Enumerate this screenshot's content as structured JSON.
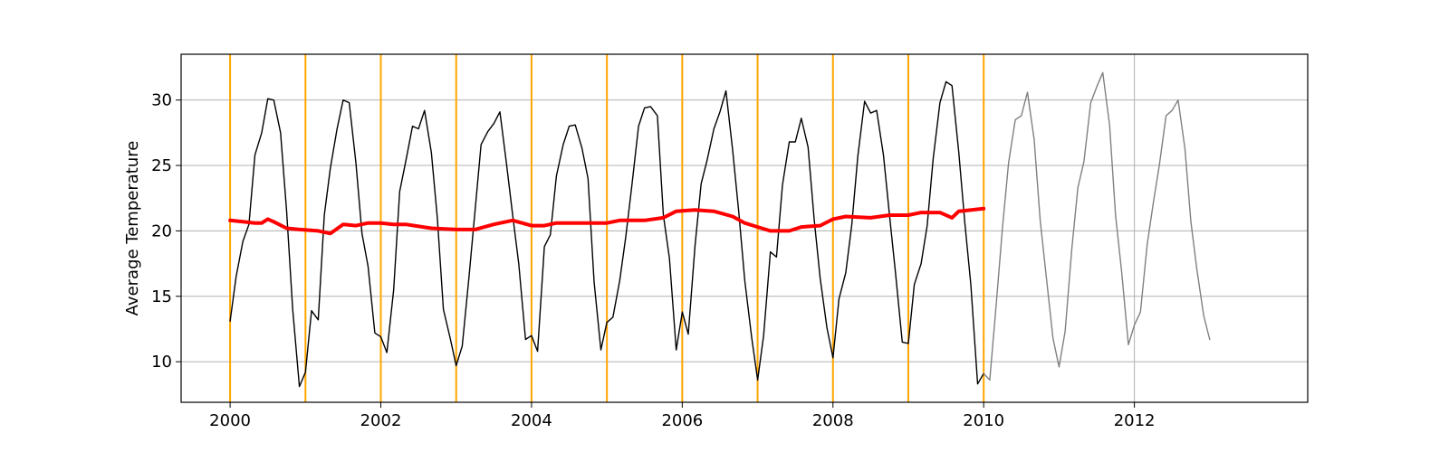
{
  "chart_data": {
    "type": "line",
    "title": "",
    "xlabel": "",
    "ylabel": "Average Temperature",
    "xlim": [
      1999.35,
      2014.3
    ],
    "ylim": [
      6.9,
      33.5
    ],
    "grid": true,
    "x_ticks": [
      2000,
      2002,
      2004,
      2006,
      2008,
      2010,
      2012
    ],
    "y_ticks": [
      10,
      15,
      20,
      25,
      30
    ],
    "x_tick_labels": [
      "2000",
      "2002",
      "2004",
      "2006",
      "2008",
      "2010",
      "2012"
    ],
    "y_tick_labels": [
      "10",
      "15",
      "20",
      "25",
      "30"
    ],
    "vertical_lines": {
      "color": "#ffa500",
      "x": [
        2000,
        2001,
        2002,
        2003,
        2004,
        2005,
        2006,
        2007,
        2008,
        2009,
        2010
      ]
    },
    "series": [
      {
        "color": "#000000",
        "points": [
          [
            2000.0,
            13.1
          ],
          [
            2000.08,
            16.5
          ],
          [
            2000.17,
            19.2
          ],
          [
            2000.25,
            20.5
          ],
          [
            2000.33,
            25.8
          ],
          [
            2000.42,
            27.5
          ],
          [
            2000.5,
            30.1
          ],
          [
            2000.58,
            30.0
          ],
          [
            2000.67,
            27.5
          ],
          [
            2000.75,
            21.5
          ],
          [
            2000.83,
            14.0
          ],
          [
            2000.92,
            8.1
          ],
          [
            2001.0,
            9.2
          ],
          [
            2001.08,
            13.9
          ],
          [
            2001.17,
            13.2
          ],
          [
            2001.25,
            21.2
          ],
          [
            2001.33,
            24.8
          ],
          [
            2001.42,
            27.8
          ],
          [
            2001.5,
            30.0
          ],
          [
            2001.58,
            29.8
          ],
          [
            2001.67,
            25.2
          ],
          [
            2001.75,
            19.8
          ],
          [
            2001.83,
            17.3
          ],
          [
            2001.92,
            12.2
          ],
          [
            2002.0,
            11.9
          ],
          [
            2002.08,
            10.7
          ],
          [
            2002.17,
            15.5
          ],
          [
            2002.25,
            23.0
          ],
          [
            2002.33,
            25.3
          ],
          [
            2002.42,
            28.0
          ],
          [
            2002.5,
            27.8
          ],
          [
            2002.58,
            29.2
          ],
          [
            2002.67,
            26.0
          ],
          [
            2002.75,
            21.0
          ],
          [
            2002.83,
            14.0
          ],
          [
            2002.92,
            11.8
          ],
          [
            2003.0,
            9.7
          ],
          [
            2003.08,
            11.2
          ],
          [
            2003.17,
            16.5
          ],
          [
            2003.25,
            21.5
          ],
          [
            2003.33,
            26.6
          ],
          [
            2003.42,
            27.6
          ],
          [
            2003.5,
            28.2
          ],
          [
            2003.58,
            29.1
          ],
          [
            2003.67,
            25.0
          ],
          [
            2003.75,
            21.2
          ],
          [
            2003.83,
            17.5
          ],
          [
            2003.92,
            11.7
          ],
          [
            2004.0,
            12.0
          ],
          [
            2004.08,
            10.8
          ],
          [
            2004.17,
            18.8
          ],
          [
            2004.25,
            19.7
          ],
          [
            2004.33,
            24.2
          ],
          [
            2004.42,
            26.6
          ],
          [
            2004.5,
            28.0
          ],
          [
            2004.58,
            28.1
          ],
          [
            2004.67,
            26.3
          ],
          [
            2004.75,
            24.0
          ],
          [
            2004.83,
            16.1
          ],
          [
            2004.92,
            10.9
          ],
          [
            2005.0,
            13.0
          ],
          [
            2005.08,
            13.4
          ],
          [
            2005.17,
            16.2
          ],
          [
            2005.25,
            19.5
          ],
          [
            2005.33,
            23.4
          ],
          [
            2005.42,
            28.0
          ],
          [
            2005.5,
            29.4
          ],
          [
            2005.58,
            29.5
          ],
          [
            2005.67,
            28.8
          ],
          [
            2005.75,
            21.2
          ],
          [
            2005.83,
            17.9
          ],
          [
            2005.92,
            10.9
          ],
          [
            2006.0,
            13.8
          ],
          [
            2006.08,
            12.1
          ],
          [
            2006.17,
            18.9
          ],
          [
            2006.25,
            23.6
          ],
          [
            2006.33,
            25.4
          ],
          [
            2006.42,
            27.8
          ],
          [
            2006.5,
            29.1
          ],
          [
            2006.58,
            30.7
          ],
          [
            2006.67,
            26.1
          ],
          [
            2006.75,
            21.4
          ],
          [
            2006.83,
            16.2
          ],
          [
            2006.92,
            11.9
          ],
          [
            2007.0,
            8.6
          ],
          [
            2007.08,
            12.0
          ],
          [
            2007.17,
            18.4
          ],
          [
            2007.25,
            18.0
          ],
          [
            2007.33,
            23.5
          ],
          [
            2007.42,
            26.8
          ],
          [
            2007.5,
            26.8
          ],
          [
            2007.58,
            28.6
          ],
          [
            2007.67,
            26.4
          ],
          [
            2007.75,
            20.9
          ],
          [
            2007.83,
            16.4
          ],
          [
            2007.92,
            12.6
          ],
          [
            2008.0,
            10.3
          ],
          [
            2008.08,
            14.8
          ],
          [
            2008.17,
            16.8
          ],
          [
            2008.25,
            20.5
          ],
          [
            2008.33,
            25.7
          ],
          [
            2008.42,
            29.9
          ],
          [
            2008.5,
            29.0
          ],
          [
            2008.58,
            29.2
          ],
          [
            2008.67,
            25.8
          ],
          [
            2008.75,
            21.2
          ],
          [
            2008.83,
            16.8
          ],
          [
            2008.92,
            11.5
          ],
          [
            2009.0,
            11.4
          ],
          [
            2009.08,
            15.9
          ],
          [
            2009.17,
            17.5
          ],
          [
            2009.25,
            20.4
          ],
          [
            2009.33,
            25.5
          ],
          [
            2009.42,
            29.8
          ],
          [
            2009.5,
            31.4
          ],
          [
            2009.58,
            31.1
          ],
          [
            2009.67,
            26.0
          ],
          [
            2009.75,
            20.6
          ],
          [
            2009.83,
            15.9
          ],
          [
            2009.92,
            8.3
          ],
          [
            2010.0,
            9.1
          ]
        ]
      },
      {
        "color": "#808080",
        "points": [
          [
            2010.0,
            9.1
          ],
          [
            2010.08,
            8.6
          ],
          [
            2010.17,
            14.6
          ],
          [
            2010.25,
            20.3
          ],
          [
            2010.33,
            25.2
          ],
          [
            2010.42,
            28.5
          ],
          [
            2010.5,
            28.8
          ],
          [
            2010.58,
            30.6
          ],
          [
            2010.67,
            27.0
          ],
          [
            2010.75,
            20.8
          ],
          [
            2010.83,
            16.5
          ],
          [
            2010.92,
            11.8
          ],
          [
            2011.0,
            9.6
          ],
          [
            2011.08,
            12.3
          ],
          [
            2011.17,
            18.7
          ],
          [
            2011.25,
            23.3
          ],
          [
            2011.33,
            25.3
          ],
          [
            2011.42,
            29.8
          ],
          [
            2011.5,
            31.0
          ],
          [
            2011.58,
            32.1
          ],
          [
            2011.67,
            28.1
          ],
          [
            2011.75,
            21.2
          ],
          [
            2011.83,
            16.9
          ],
          [
            2011.92,
            11.3
          ],
          [
            2012.0,
            12.8
          ],
          [
            2012.08,
            13.8
          ],
          [
            2012.17,
            19.0
          ],
          [
            2012.25,
            22.1
          ],
          [
            2012.33,
            25.0
          ],
          [
            2012.42,
            28.8
          ],
          [
            2012.5,
            29.2
          ],
          [
            2012.58,
            30.0
          ],
          [
            2012.67,
            26.3
          ],
          [
            2012.75,
            20.7
          ],
          [
            2012.83,
            17.0
          ],
          [
            2012.92,
            13.5
          ],
          [
            2013.0,
            11.7
          ]
        ]
      },
      {
        "color": "#ff0000",
        "points": [
          [
            2000.0,
            20.8
          ],
          [
            2000.17,
            20.7
          ],
          [
            2000.33,
            20.6
          ],
          [
            2000.42,
            20.6
          ],
          [
            2000.5,
            20.9
          ],
          [
            2000.58,
            20.7
          ],
          [
            2000.75,
            20.2
          ],
          [
            2000.92,
            20.1
          ],
          [
            2001.17,
            20.0
          ],
          [
            2001.33,
            19.8
          ],
          [
            2001.5,
            20.5
          ],
          [
            2001.67,
            20.4
          ],
          [
            2001.83,
            20.6
          ],
          [
            2002.0,
            20.6
          ],
          [
            2002.17,
            20.5
          ],
          [
            2002.33,
            20.5
          ],
          [
            2002.67,
            20.2
          ],
          [
            2003.0,
            20.1
          ],
          [
            2003.25,
            20.1
          ],
          [
            2003.5,
            20.5
          ],
          [
            2003.75,
            20.8
          ],
          [
            2004.0,
            20.4
          ],
          [
            2004.17,
            20.4
          ],
          [
            2004.33,
            20.6
          ],
          [
            2004.67,
            20.6
          ],
          [
            2005.0,
            20.6
          ],
          [
            2005.17,
            20.8
          ],
          [
            2005.5,
            20.8
          ],
          [
            2005.75,
            21.0
          ],
          [
            2005.92,
            21.5
          ],
          [
            2006.17,
            21.6
          ],
          [
            2006.42,
            21.5
          ],
          [
            2006.67,
            21.1
          ],
          [
            2006.83,
            20.6
          ],
          [
            2007.0,
            20.3
          ],
          [
            2007.17,
            20.0
          ],
          [
            2007.42,
            20.0
          ],
          [
            2007.58,
            20.3
          ],
          [
            2007.83,
            20.4
          ],
          [
            2008.0,
            20.9
          ],
          [
            2008.17,
            21.1
          ],
          [
            2008.5,
            21.0
          ],
          [
            2008.75,
            21.2
          ],
          [
            2009.0,
            21.2
          ],
          [
            2009.17,
            21.4
          ],
          [
            2009.42,
            21.4
          ],
          [
            2009.58,
            21.0
          ],
          [
            2009.67,
            21.5
          ],
          [
            2010.0,
            21.7
          ]
        ]
      }
    ]
  }
}
